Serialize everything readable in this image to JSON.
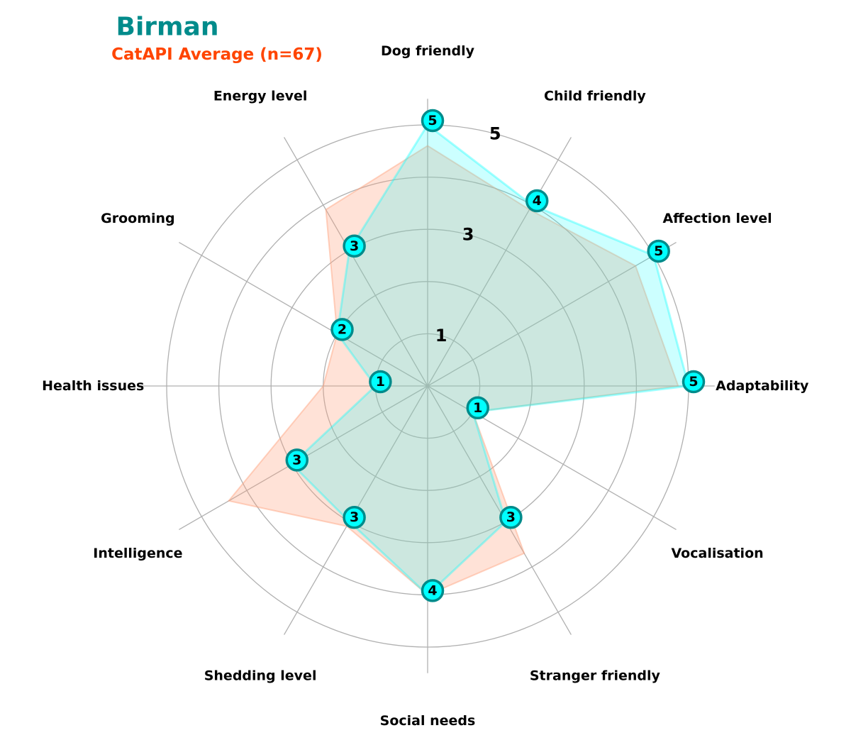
{
  "chart_data": {
    "type": "radar",
    "title": "Birman",
    "subtitle": "CatAPI Average (n=67)",
    "categories": [
      "Adaptability",
      "Affection level",
      "Child friendly",
      "Dog friendly",
      "Energy level",
      "Grooming",
      "Health issues",
      "Intelligence",
      "Shedding level",
      "Social needs",
      "Stranger friendly",
      "Vocalisation"
    ],
    "series": [
      {
        "name": "Birman",
        "values": [
          5,
          5,
          4,
          5,
          3,
          2,
          1,
          3,
          3,
          4,
          3,
          1
        ],
        "color": "#00ffff",
        "edge_color": "#008b8b"
      },
      {
        "name": "CatAPI Average (n=67)",
        "values": [
          4.8,
          4.6,
          3.9,
          4.6,
          3.9,
          2.0,
          2.0,
          4.4,
          3.1,
          4.0,
          3.7,
          1.0
        ],
        "color": "#ffa07a"
      }
    ],
    "rlim": [
      0,
      5.5
    ],
    "rticks": [
      1,
      2,
      3,
      4,
      5
    ],
    "rtick_labels": [
      "1",
      "",
      "3",
      "",
      "5"
    ],
    "grid": true,
    "title_color": "#008b8b",
    "subtitle_color": "#ff4500"
  }
}
